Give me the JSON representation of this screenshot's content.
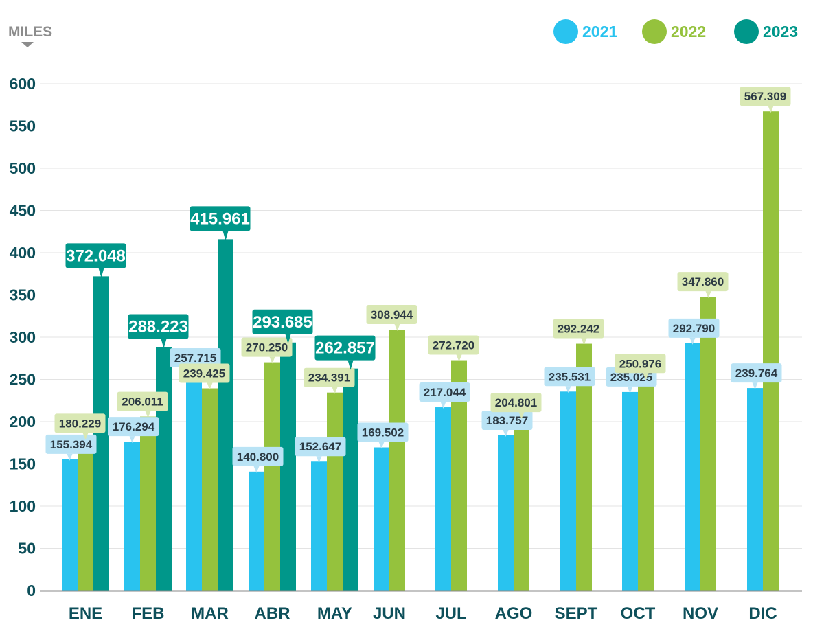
{
  "chart_data": {
    "type": "bar",
    "unit_label": "MILES",
    "categories": [
      "ENE",
      "FEB",
      "MAR",
      "ABR",
      "MAY",
      "JUN",
      "JUL",
      "AGO",
      "SEPT",
      "OCT",
      "NOV",
      "DIC"
    ],
    "series": [
      {
        "name": "2021",
        "color": "#29c3ef",
        "label_bg": "#b9e3f5",
        "values": [
          155.394,
          176.294,
          257.715,
          140.8,
          152.647,
          169.502,
          217.044,
          183.757,
          235.531,
          235.025,
          292.79,
          239.764
        ],
        "labels": [
          "155.394",
          "176.294",
          "257.715",
          "140.800",
          "152.647",
          "169.502",
          "217.044",
          "183.757",
          "235.531",
          "235.025",
          "292.790",
          "239.764"
        ]
      },
      {
        "name": "2022",
        "color": "#95c23d",
        "label_bg": "#d9e8b4",
        "values": [
          180.229,
          206.011,
          239.425,
          270.25,
          234.391,
          308.944,
          272.72,
          204.801,
          292.242,
          250.976,
          347.86,
          567.309
        ],
        "labels": [
          "180.229",
          "206.011",
          "239.425",
          "270.250",
          "234.391",
          "308.944",
          "272.720",
          "204.801",
          "292.242",
          "250.976",
          "347.860",
          "567.309"
        ]
      },
      {
        "name": "2023",
        "color": "#00978a",
        "label_bg": "#00978a",
        "values": [
          372.048,
          288.223,
          415.961,
          293.685,
          262.857,
          null,
          null,
          null,
          null,
          null,
          null,
          null
        ],
        "labels": [
          "372.048",
          "288.223",
          "415.961",
          "293.685",
          "262.857",
          null,
          null,
          null,
          null,
          null,
          null,
          null
        ]
      }
    ],
    "y_ticks": [
      "0",
      "50",
      "100",
      "150",
      "200",
      "250",
      "300",
      "350",
      "400",
      "450",
      "500",
      "550",
      "600"
    ],
    "ylim": [
      0,
      600
    ],
    "grid": true,
    "legend_position": "top-right",
    "legend": [
      "2021",
      "2022",
      "2023"
    ],
    "colors": {
      "axis_text": "#0d4f5a",
      "grid": "#e3e3e3",
      "unit": "#8c8c8c"
    }
  }
}
